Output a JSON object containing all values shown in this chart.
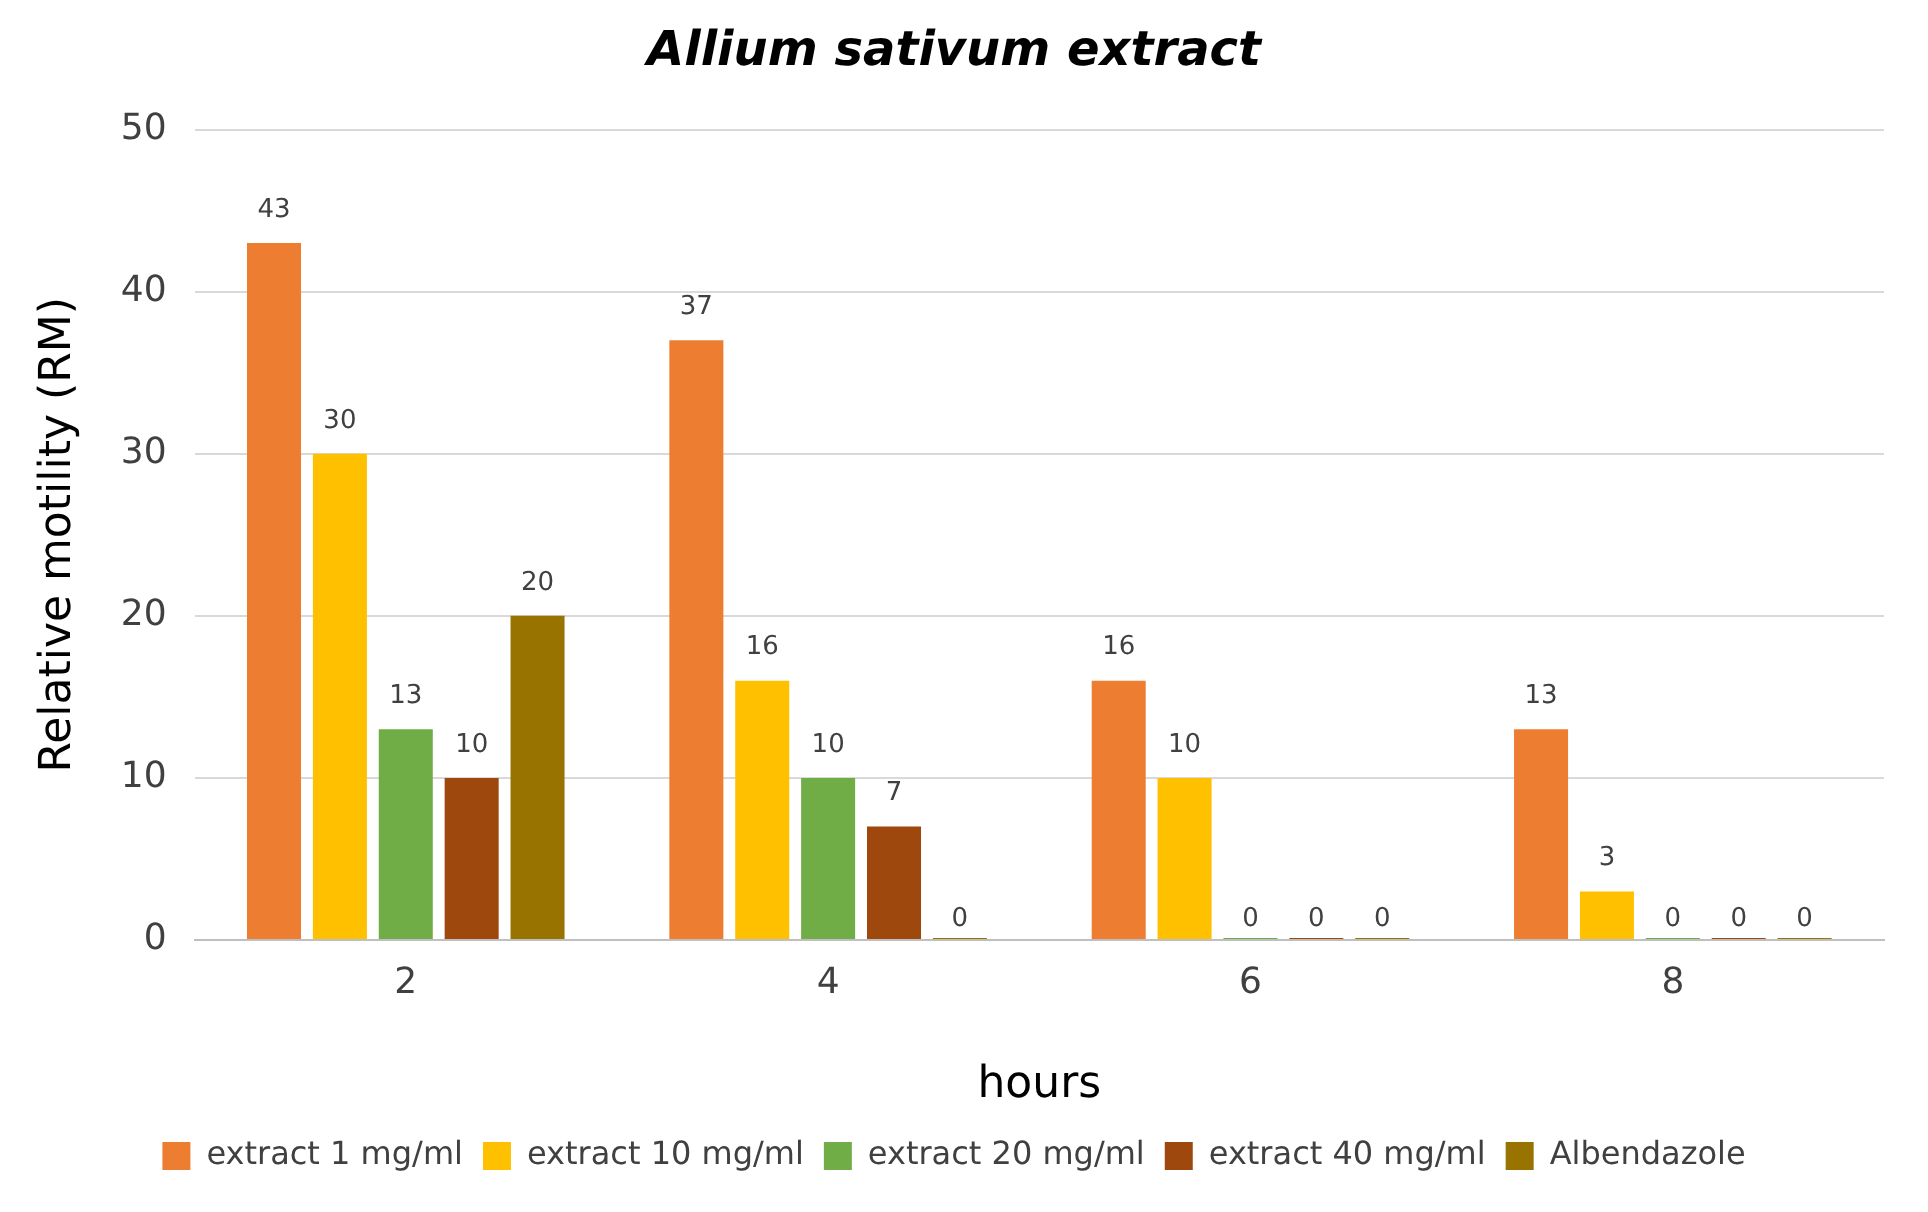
{
  "chart_data": {
    "type": "bar",
    "title": "Allium sativum extract",
    "xlabel": "hours",
    "ylabel": "Relative motility (RM)",
    "categories": [
      "2",
      "4",
      "6",
      "8"
    ],
    "series": [
      {
        "name": "extract 1 mg/ml",
        "color": "#ed7d31",
        "values": [
          43,
          37,
          16,
          13
        ]
      },
      {
        "name": "extract 10 mg/ml",
        "color": "#ffc000",
        "values": [
          30,
          16,
          10,
          3
        ]
      },
      {
        "name": "extract 20 mg/ml",
        "color": "#70ad47",
        "values": [
          13,
          10,
          0,
          0
        ]
      },
      {
        "name": "extract 40 mg/ml",
        "color": "#9e480e",
        "values": [
          10,
          7,
          0,
          0
        ]
      },
      {
        "name": "Albendazole",
        "color": "#997300",
        "values": [
          20,
          0,
          0,
          0
        ]
      }
    ],
    "ylim": [
      0,
      50
    ],
    "yticks": [
      0,
      10,
      20,
      30,
      40,
      50
    ],
    "grid": "y",
    "legend": "bottom",
    "data_labels": true
  }
}
